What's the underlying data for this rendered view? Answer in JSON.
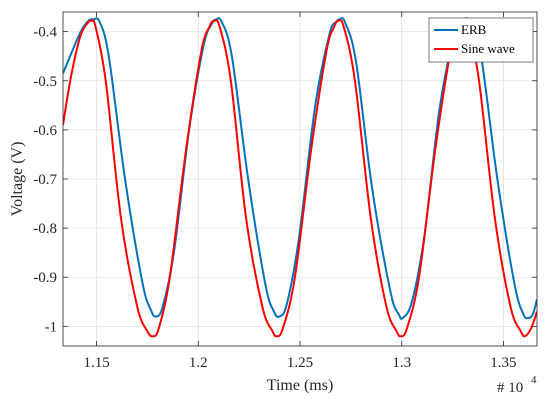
{
  "chart_data": {
    "type": "line",
    "title": "",
    "xlabel": "Time (ms)",
    "ylabel": "Voltage (V)",
    "x_multiplier_label": "# 10",
    "x_multiplier_exponent": "4",
    "xlim": [
      1.1335,
      1.3665
    ],
    "ylim": [
      -1.04,
      -0.36
    ],
    "x_ticks": [
      1.15,
      1.2,
      1.25,
      1.3,
      1.35
    ],
    "x_tick_labels": [
      "1.15",
      "1.2",
      "1.25",
      "1.3",
      "1.35"
    ],
    "y_ticks": [
      -1.0,
      -0.9,
      -0.8,
      -0.7,
      -0.6,
      -0.5,
      -0.4
    ],
    "y_tick_labels": [
      "-1",
      "-0.9",
      "-0.8",
      "-0.7",
      "-0.6",
      "-0.5",
      "-0.4"
    ],
    "grid": true,
    "legend_position": "top-right",
    "series": [
      {
        "name": "ERB",
        "color": "#0072BD",
        "x": [
          1.1335,
          1.1385,
          1.1425,
          1.146,
          1.1485,
          1.1515,
          1.156,
          1.164,
          1.1725,
          1.1765,
          1.1792,
          1.1825,
          1.188,
          1.1955,
          1.2025,
          1.2065,
          1.2088,
          1.2115,
          1.2165,
          1.2245,
          1.233,
          1.2372,
          1.2398,
          1.2435,
          1.2495,
          1.2575,
          1.2645,
          1.2678,
          1.2695,
          1.272,
          1.2775,
          1.2855,
          1.2945,
          1.2985,
          1.3005,
          1.305,
          1.311,
          1.3185,
          1.3255,
          1.3288,
          1.3305,
          1.3335,
          1.339,
          1.347,
          1.3555,
          1.3598,
          1.3622,
          1.3645,
          1.3665
        ],
        "y": [
          -0.485,
          -0.435,
          -0.398,
          -0.378,
          -0.375,
          -0.38,
          -0.45,
          -0.7,
          -0.91,
          -0.965,
          -0.98,
          -0.96,
          -0.85,
          -0.6,
          -0.43,
          -0.385,
          -0.375,
          -0.38,
          -0.45,
          -0.7,
          -0.915,
          -0.97,
          -0.98,
          -0.955,
          -0.82,
          -0.55,
          -0.405,
          -0.38,
          -0.375,
          -0.38,
          -0.46,
          -0.72,
          -0.93,
          -0.975,
          -0.983,
          -0.95,
          -0.82,
          -0.56,
          -0.41,
          -0.38,
          -0.375,
          -0.38,
          -0.45,
          -0.7,
          -0.915,
          -0.975,
          -0.983,
          -0.975,
          -0.945
        ]
      },
      {
        "name": "Sine wave",
        "color": "#FF0000",
        "x": [
          1.1335,
          1.1375,
          1.142,
          1.1455,
          1.1475,
          1.1495,
          1.1545,
          1.162,
          1.17,
          1.175,
          1.1775,
          1.1805,
          1.186,
          1.194,
          1.2015,
          1.2055,
          1.2078,
          1.2105,
          1.216,
          1.2235,
          1.2315,
          1.2365,
          1.2385,
          1.2415,
          1.2475,
          1.2555,
          1.263,
          1.2668,
          1.2688,
          1.2715,
          1.277,
          1.2848,
          1.2925,
          1.2975,
          1.2995,
          1.3025,
          1.3085,
          1.3165,
          1.324,
          1.3278,
          1.3298,
          1.3325,
          1.338,
          1.3458,
          1.3535,
          1.3585,
          1.3605,
          1.3635,
          1.3665
        ],
        "y": [
          -0.59,
          -0.49,
          -0.41,
          -0.383,
          -0.378,
          -0.39,
          -0.5,
          -0.78,
          -0.96,
          -1.01,
          -1.02,
          -1.005,
          -0.9,
          -0.64,
          -0.44,
          -0.39,
          -0.378,
          -0.39,
          -0.5,
          -0.78,
          -0.96,
          -1.01,
          -1.02,
          -1.005,
          -0.9,
          -0.64,
          -0.44,
          -0.39,
          -0.378,
          -0.39,
          -0.5,
          -0.78,
          -0.96,
          -1.01,
          -1.02,
          -1.005,
          -0.9,
          -0.64,
          -0.44,
          -0.39,
          -0.378,
          -0.39,
          -0.5,
          -0.78,
          -0.96,
          -1.01,
          -1.02,
          -1.005,
          -0.97
        ]
      }
    ]
  }
}
